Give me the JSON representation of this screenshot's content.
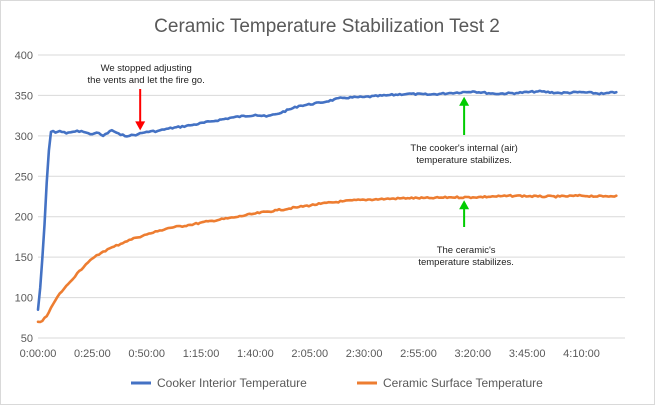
{
  "chart_data": {
    "type": "line",
    "title": "Ceramic Temperature  Stabilization Test 2",
    "xlabel": "",
    "ylabel": "",
    "xlim_minutes": [
      0,
      270
    ],
    "ylim": [
      50,
      400
    ],
    "y_ticks": [
      50,
      100,
      150,
      200,
      250,
      300,
      350,
      400
    ],
    "x_ticks": [
      {
        "label": "0:00:00",
        "minutes": 0
      },
      {
        "label": "0:25:00",
        "minutes": 25
      },
      {
        "label": "0:50:00",
        "minutes": 50
      },
      {
        "label": "1:15:00",
        "minutes": 75
      },
      {
        "label": "1:40:00",
        "minutes": 100
      },
      {
        "label": "2:05:00",
        "minutes": 125
      },
      {
        "label": "2:30:00",
        "minutes": 150
      },
      {
        "label": "2:55:00",
        "minutes": 175
      },
      {
        "label": "3:20:00",
        "minutes": 200
      },
      {
        "label": "3:45:00",
        "minutes": 225
      },
      {
        "label": "4:10:00",
        "minutes": 250
      }
    ],
    "grid": true,
    "legend_position": "bottom",
    "series": [
      {
        "name": "Cooker Interior Temperature",
        "color": "#4472c4",
        "x_minutes": [
          0,
          1,
          2,
          3,
          4,
          5,
          6,
          7,
          8,
          10,
          13,
          16,
          20,
          24,
          27,
          30,
          34,
          38,
          42,
          46,
          50,
          55,
          60,
          70,
          80,
          90,
          100,
          105,
          110,
          120,
          130,
          140,
          150,
          160,
          170,
          180,
          190,
          200,
          210,
          220,
          230,
          240,
          250,
          260,
          266
        ],
        "values": [
          85,
          112,
          148,
          190,
          242,
          282,
          305,
          306,
          304,
          306,
          303,
          305,
          306,
          302,
          304,
          300,
          307,
          301,
          300,
          302,
          305,
          306,
          309,
          313,
          318,
          323,
          326,
          324,
          327,
          337,
          341,
          347,
          348,
          350,
          352,
          351,
          353,
          355,
          352,
          353,
          355,
          353,
          354,
          352,
          354
        ]
      },
      {
        "name": "Ceramic Surface Temperature",
        "color": "#ed7d31",
        "x_minutes": [
          0,
          2,
          4,
          7,
          10,
          14,
          18,
          22,
          26,
          30,
          35,
          40,
          45,
          50,
          55,
          60,
          70,
          80,
          90,
          100,
          110,
          120,
          130,
          140,
          150,
          160,
          170,
          180,
          190,
          200,
          210,
          220,
          230,
          240,
          250,
          260,
          266
        ],
        "values": [
          70,
          71,
          77,
          92,
          105,
          117,
          130,
          141,
          150,
          157,
          163,
          169,
          174,
          178,
          182,
          186,
          190,
          195,
          199,
          204,
          208,
          212,
          216,
          219,
          221,
          222,
          223,
          223,
          224,
          224,
          225,
          226,
          225,
          225,
          226,
          225,
          226
        ]
      }
    ],
    "annotations": [
      {
        "lines": [
          "We stopped adjusting",
          "the vents and let the fire go."
        ],
        "arrow_color": "#ff0000",
        "arrow_at_minutes": 47,
        "arrow_tip_value": 303
      },
      {
        "lines": [
          "The cooker's internal (air)",
          "temperature stabilizes."
        ],
        "arrow_color": "#00cc00",
        "arrow_at_minutes": 196,
        "arrow_tip_value": 350
      },
      {
        "lines": [
          "The ceramic's",
          "temperature stabilizes."
        ],
        "arrow_color": "#00cc00",
        "arrow_at_minutes": 196,
        "arrow_tip_value": 220
      }
    ]
  }
}
